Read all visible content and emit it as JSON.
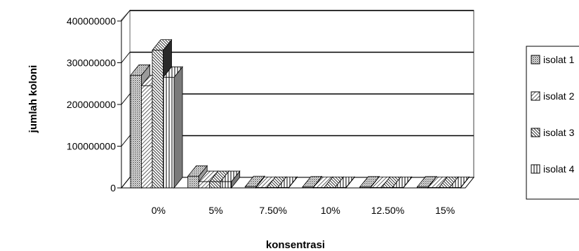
{
  "chart_data": {
    "type": "bar",
    "title": "",
    "xlabel": "konsentrasi",
    "ylabel": "jumlah koloni",
    "categories": [
      "0%",
      "5%",
      "7.50%",
      "10%",
      "12.50%",
      "15%"
    ],
    "yticks": [
      "0",
      "100000000",
      "200000000",
      "300000000",
      "400000000"
    ],
    "ylim": [
      0,
      400000000
    ],
    "grid": true,
    "legend_position": "right",
    "style": "3d-clustered-column",
    "series": [
      {
        "name": "isolat 1",
        "pattern": "dots",
        "values": [
          270000000,
          28000000,
          3000000,
          2000000,
          2000000,
          2000000
        ]
      },
      {
        "name": "isolat 2",
        "pattern": "diagonal",
        "values": [
          245000000,
          15000000,
          1000000,
          1000000,
          1000000,
          1000000
        ]
      },
      {
        "name": "isolat 3",
        "pattern": "dark-diagonal",
        "values": [
          330000000,
          15000000,
          1000000,
          1000000,
          1000000,
          1000000
        ]
      },
      {
        "name": "isolat 4",
        "pattern": "vertical",
        "values": [
          265000000,
          15000000,
          1000000,
          1000000,
          1000000,
          1000000
        ]
      }
    ]
  }
}
